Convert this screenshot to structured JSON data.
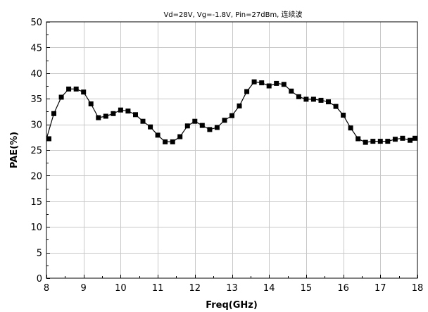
{
  "chart_data": {
    "type": "line",
    "title": "Vd=28V, Vg=-1.8V, Pin=27dBm, 连续波",
    "xlabel": "Freq(GHz)",
    "ylabel": "PAE(%)",
    "xlim": [
      8,
      18
    ],
    "ylim": [
      0,
      50
    ],
    "xticks": [
      8,
      9,
      10,
      11,
      12,
      13,
      14,
      15,
      16,
      17,
      18
    ],
    "yticks": [
      0,
      5,
      10,
      15,
      20,
      25,
      30,
      35,
      40,
      45,
      50
    ],
    "grid": true,
    "marker": "square",
    "color": "#000000",
    "series": [
      {
        "x": [
          8.0,
          8.2,
          8.4,
          8.6,
          8.8,
          9.0,
          9.2,
          9.4,
          9.6,
          9.8,
          10.0,
          10.2,
          10.4,
          10.6,
          10.8,
          11.0,
          11.2,
          11.4,
          11.6,
          11.8,
          12.0,
          12.2,
          12.4,
          12.6,
          12.8,
          13.0,
          13.2,
          13.4,
          13.6,
          13.8,
          14.0,
          14.2,
          14.4,
          14.6,
          14.8,
          15.0,
          15.2,
          15.4,
          15.6,
          15.8,
          16.0,
          16.2,
          16.4,
          16.6,
          16.8,
          17.0,
          17.2,
          17.4,
          17.6,
          17.8,
          18.0
        ],
        "y": [
          27.2,
          32.1,
          35.3,
          36.9,
          36.9,
          36.3,
          34.0,
          31.3,
          31.6,
          32.1,
          32.8,
          32.6,
          31.9,
          30.6,
          29.5,
          27.9,
          26.6,
          26.6,
          27.6,
          29.7,
          30.6,
          29.8,
          29.0,
          29.4,
          30.8,
          31.7,
          33.6,
          36.4,
          38.3,
          38.1,
          37.5,
          38.0,
          37.8,
          36.5,
          35.4,
          34.9,
          34.9,
          34.7,
          34.4,
          33.5,
          31.8,
          29.3,
          27.2,
          26.5,
          26.7,
          26.7,
          26.7,
          27.1,
          27.3,
          26.9,
          27.3
        ]
      }
    ]
  }
}
